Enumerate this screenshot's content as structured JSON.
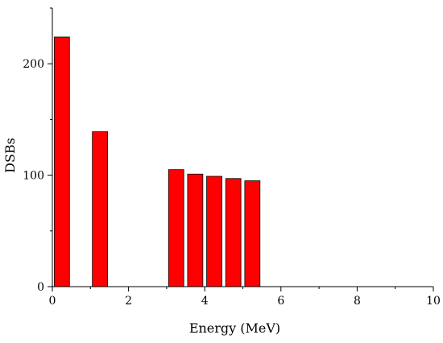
{
  "chart_data": {
    "type": "bar",
    "title": "",
    "xlabel": "Energy (MeV)",
    "ylabel": "DSBs",
    "xlim": [
      0,
      10
    ],
    "ylim": [
      0,
      250
    ],
    "x_ticks": [
      0,
      2,
      4,
      6,
      8,
      10
    ],
    "y_ticks": [
      0,
      100,
      200
    ],
    "bar_width": 0.4,
    "bar_color": "#ff0000",
    "bar_edge_color": "#000000",
    "grid": false,
    "legend": "none",
    "series": [
      {
        "x": [
          0.25,
          1.25,
          3.25,
          3.75,
          4.25,
          4.75,
          5.25
        ],
        "values": [
          224,
          139,
          105,
          101,
          99,
          97,
          95
        ]
      }
    ]
  }
}
